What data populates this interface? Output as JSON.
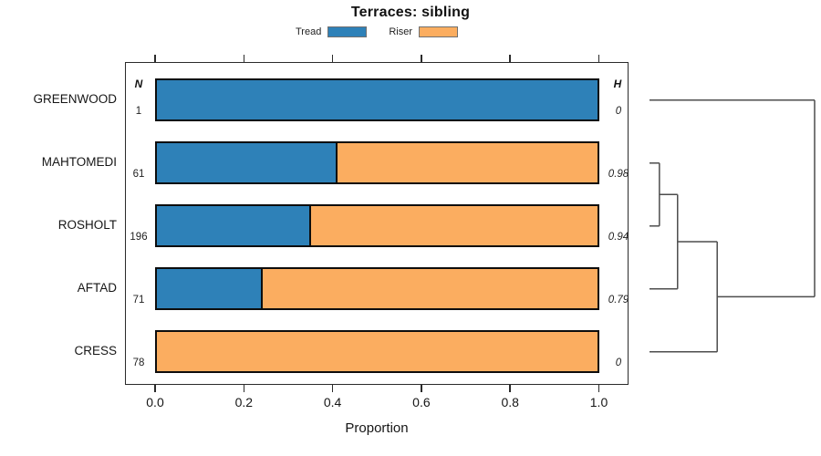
{
  "title": "Terraces: sibling",
  "legend": {
    "items": [
      {
        "label": "Tread",
        "color": "#2E81B8"
      },
      {
        "label": "Riser",
        "color": "#FBAD60"
      }
    ]
  },
  "axis": {
    "label": "Proportion",
    "ticks": [
      "0.0",
      "0.2",
      "0.4",
      "0.6",
      "0.8",
      "1.0"
    ],
    "range": [
      0.0,
      1.0
    ]
  },
  "columns": {
    "n_header": "N",
    "h_header": "H"
  },
  "chart_data": {
    "type": "bar",
    "orientation": "horizontal",
    "stacked": true,
    "title": "Terraces: sibling",
    "xlabel": "Proportion",
    "xlim": [
      0,
      1
    ],
    "grid": false,
    "legend_position": "top",
    "categories": [
      "GREENWOOD",
      "MAHTOMEDI",
      "ROSHOLT",
      "AFTAD",
      "CRESS"
    ],
    "series": [
      {
        "name": "Tread",
        "color": "#2E81B8",
        "values": [
          1.0,
          0.41,
          0.35,
          0.24,
          0.0
        ]
      },
      {
        "name": "Riser",
        "color": "#FBAD60",
        "values": [
          0.0,
          0.59,
          0.65,
          0.76,
          1.0
        ]
      }
    ],
    "n_values": [
      "1",
      "61",
      "196",
      "71",
      "78"
    ],
    "h_values": [
      "0",
      "0.98",
      "0.94",
      "0.79",
      "0"
    ],
    "dendrogram": {
      "leaf_order": [
        "GREENWOOD",
        "MAHTOMEDI",
        "ROSHOLT",
        "AFTAD",
        "CRESS"
      ],
      "merges": [
        {
          "id": "c1",
          "a": "MAHTOMEDI",
          "b": "ROSHOLT",
          "height": 0.06
        },
        {
          "id": "c2",
          "a": "c1",
          "b": "AFTAD",
          "height": 0.17
        },
        {
          "id": "c3",
          "a": "c2",
          "b": "CRESS",
          "height": 0.41
        },
        {
          "id": "c4",
          "a": "c3",
          "b": "GREENWOOD",
          "height": 1.0
        }
      ]
    }
  }
}
